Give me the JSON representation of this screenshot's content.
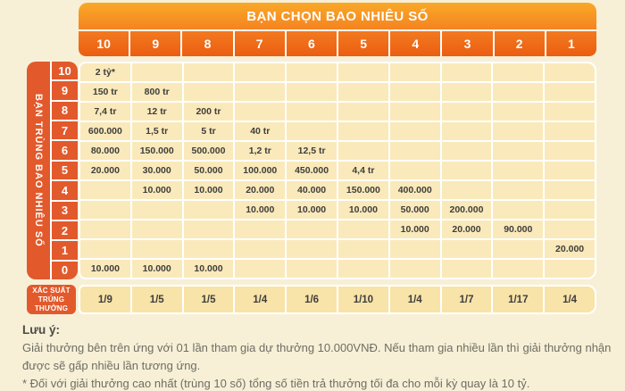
{
  "chart_data": {
    "type": "table",
    "title": "BẠN CHỌN BAO NHIÊU SỐ",
    "row_title": "BẠN TRÙNG BAO NHIÊU SỐ",
    "columns": [
      "10",
      "9",
      "8",
      "7",
      "6",
      "5",
      "4",
      "3",
      "2",
      "1"
    ],
    "row_labels": [
      "10",
      "9",
      "8",
      "7",
      "6",
      "5",
      "4",
      "3",
      "2",
      "1",
      "0"
    ],
    "rows": [
      [
        "2 tỷ*",
        "",
        "",
        "",
        "",
        "",
        "",
        "",
        "",
        ""
      ],
      [
        "150 tr",
        "800 tr",
        "",
        "",
        "",
        "",
        "",
        "",
        "",
        ""
      ],
      [
        "7,4 tr",
        "12 tr",
        "200 tr",
        "",
        "",
        "",
        "",
        "",
        "",
        ""
      ],
      [
        "600.000",
        "1,5 tr",
        "5 tr",
        "40 tr",
        "",
        "",
        "",
        "",
        "",
        ""
      ],
      [
        "80.000",
        "150.000",
        "500.000",
        "1,2 tr",
        "12,5 tr",
        "",
        "",
        "",
        "",
        ""
      ],
      [
        "20.000",
        "30.000",
        "50.000",
        "100.000",
        "450.000",
        "4,4 tr",
        "",
        "",
        "",
        ""
      ],
      [
        "",
        "10.000",
        "10.000",
        "20.000",
        "40.000",
        "150.000",
        "400.000",
        "",
        "",
        ""
      ],
      [
        "",
        "",
        "",
        "10.000",
        "10.000",
        "10.000",
        "50.000",
        "200.000",
        "",
        ""
      ],
      [
        "",
        "",
        "",
        "",
        "",
        "",
        "10.000",
        "20.000",
        "90.000",
        ""
      ],
      [
        "",
        "",
        "",
        "",
        "",
        "",
        "",
        "",
        "",
        "20.000"
      ],
      [
        "10.000",
        "10.000",
        "10.000",
        "",
        "",
        "",
        "",
        "",
        "",
        ""
      ]
    ],
    "probability_label": "XÁC SUẤT TRÚNG THƯỞNG",
    "probabilities": [
      "1/9",
      "1/5",
      "1/5",
      "1/4",
      "1/6",
      "1/10",
      "1/4",
      "1/7",
      "1/17",
      "1/4"
    ]
  },
  "notes": {
    "heading": "Lưu ý:",
    "line1": "Giải thưởng bên trên ứng với 01 lần tham gia dự thưởng 10.000VNĐ. Nếu tham gia nhiều lần thì giải thưởng nhận được sẽ gấp nhiều lần tương ứng.",
    "line2": "* Đối với giải thưởng cao nhất (trùng 10 số) tổng số tiền trả thưởng tối đa cho mỗi kỳ quay là 10 tỷ."
  },
  "colors": {
    "page_background": "#F7F0D7",
    "header_gradient_top": "#F9A928",
    "header_gradient_bottom": "#F58321",
    "column_band_gradient_top": "#F37A20",
    "column_band_gradient_bottom": "#EB5E11",
    "sidebar_orange": "#E2592B",
    "prize_cell_background": "#FAE9BA",
    "probability_cell_background": "#F8E3A8",
    "cell_text": "#3E3E3C",
    "note_text": "#6E6D63"
  }
}
